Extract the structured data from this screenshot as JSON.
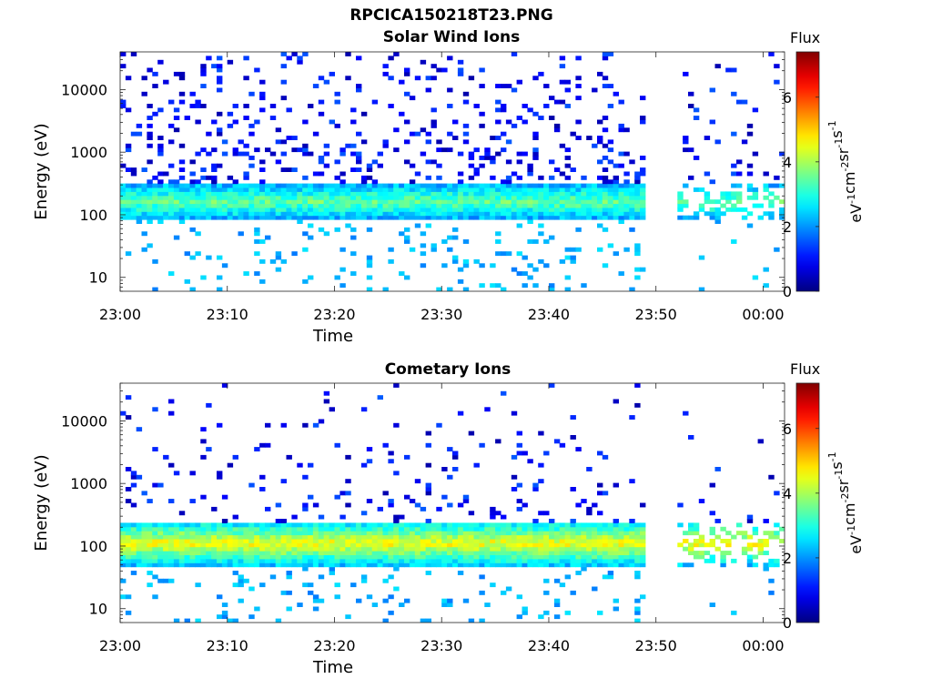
{
  "figure": {
    "title": "RPCICA150218T23.PNG"
  },
  "colorbar": {
    "label": "Flux",
    "unit_base": "eV",
    "unit_parts": [
      [
        "eV",
        "-1"
      ],
      [
        "cm",
        "-2"
      ],
      [
        "sr",
        "-1"
      ],
      [
        "s",
        "-1"
      ]
    ],
    "ticks": [
      "0",
      "2",
      "4",
      "6"
    ],
    "range": [
      0,
      7.4
    ],
    "colormap": "jet"
  },
  "chart_data": [
    {
      "type": "heatmap",
      "title": "Solar Wind Ions",
      "xlabel": "Time",
      "ylabel": "Energy (eV)",
      "yscale": "log",
      "ylim": [
        6,
        40000
      ],
      "xlim": [
        "23:00",
        "00:02"
      ],
      "xticks": [
        "23:00",
        "23:10",
        "23:20",
        "23:30",
        "23:40",
        "23:50",
        "00:00"
      ],
      "yticks": [
        "10",
        "100",
        "1000",
        "10000"
      ],
      "data_gap": [
        "23:49",
        "23:52"
      ],
      "main_band_energy_eV": [
        90,
        300
      ],
      "peak_flux": 3.5
    },
    {
      "type": "heatmap",
      "title": "Cometary Ions",
      "xlabel": "Time",
      "ylabel": "Energy (eV)",
      "yscale": "log",
      "ylim": [
        6,
        40000
      ],
      "xlim": [
        "23:00",
        "00:02"
      ],
      "xticks": [
        "23:00",
        "23:10",
        "23:20",
        "23:30",
        "23:40",
        "23:50",
        "00:00"
      ],
      "yticks": [
        "10",
        "100",
        "1000",
        "10000"
      ],
      "data_gap": [
        "23:49",
        "23:52"
      ],
      "main_band_energy_eV": [
        50,
        250
      ],
      "peak_flux": 4.6
    }
  ]
}
